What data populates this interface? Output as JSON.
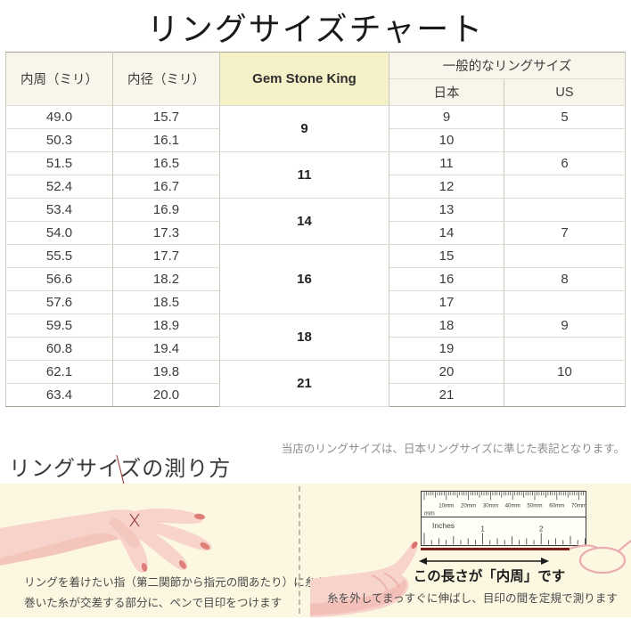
{
  "page": {
    "title": "リングサイズチャート"
  },
  "colors": {
    "header_cream": "#f8f6ea",
    "gsk_yellow": "#f4f0c8",
    "panel_cream": "#fcf7e1",
    "hand_pink": "#f7d3cc",
    "hand_shade": "#f1bcb4",
    "nail_pink": "#de7f78",
    "thread_dark_red": "#7e1d1c",
    "thread_light_pink": "#eaabb1",
    "border_dark": "#a2a294",
    "border_light": "#dedcd2"
  },
  "table": {
    "headers": {
      "inner_circumference": "内周（ミリ）",
      "inner_diameter": "内径（ミリ）",
      "brand": "Gem Stone King",
      "general_group": "一般的なリングサイズ",
      "japan": "日本",
      "us": "US"
    },
    "groups": [
      {
        "gsk": "9",
        "rows": [
          {
            "inner_circ": "49.0",
            "inner_dia": "15.7",
            "jp": "9",
            "us": "5"
          },
          {
            "inner_circ": "50.3",
            "inner_dia": "16.1",
            "jp": "10",
            "us": ""
          }
        ]
      },
      {
        "gsk": "11",
        "rows": [
          {
            "inner_circ": "51.5",
            "inner_dia": "16.5",
            "jp": "11",
            "us": "6"
          },
          {
            "inner_circ": "52.4",
            "inner_dia": "16.7",
            "jp": "12",
            "us": ""
          }
        ]
      },
      {
        "gsk": "14",
        "rows": [
          {
            "inner_circ": "53.4",
            "inner_dia": "16.9",
            "jp": "13",
            "us": ""
          },
          {
            "inner_circ": "54.0",
            "inner_dia": "17.3",
            "jp": "14",
            "us": "7"
          }
        ]
      },
      {
        "gsk": "16",
        "rows": [
          {
            "inner_circ": "55.5",
            "inner_dia": "17.7",
            "jp": "15",
            "us": ""
          },
          {
            "inner_circ": "56.6",
            "inner_dia": "18.2",
            "jp": "16",
            "us": "8"
          },
          {
            "inner_circ": "57.6",
            "inner_dia": "18.5",
            "jp": "17",
            "us": ""
          }
        ]
      },
      {
        "gsk": "18",
        "rows": [
          {
            "inner_circ": "59.5",
            "inner_dia": "18.9",
            "jp": "18",
            "us": "9"
          },
          {
            "inner_circ": "60.8",
            "inner_dia": "19.4",
            "jp": "19",
            "us": ""
          }
        ]
      },
      {
        "gsk": "21",
        "rows": [
          {
            "inner_circ": "62.1",
            "inner_dia": "19.8",
            "jp": "20",
            "us": "10"
          },
          {
            "inner_circ": "63.4",
            "inner_dia": "20.0",
            "jp": "21",
            "us": ""
          }
        ]
      }
    ],
    "note": "当店のリングサイズは、日本リングサイズに準じた表記となります。"
  },
  "howto": {
    "title": "リングサイズの測り方",
    "left_caption_line1": "リングを着けたい指（第二関節から指元の間あたり）に糸を巻き",
    "left_caption_line2": "巻いた糸が交差する部分に、ペンで目印をつけます",
    "right_caption_bold": "この長さが「内周」です",
    "right_caption": "糸を外してまっすぐに伸ばし、目印の間を定規で測ります",
    "ruler": {
      "mm_labels": [
        "10mm",
        "20mm",
        "30mm",
        "40mm",
        "50mm",
        "60mm",
        "70mm"
      ],
      "mm_unit": "mm",
      "inch_label": "Inches",
      "inch_numbers": [
        "1",
        "2"
      ]
    }
  }
}
